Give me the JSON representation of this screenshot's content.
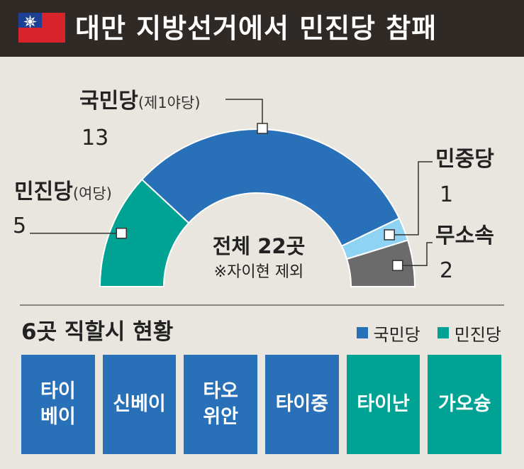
{
  "header": {
    "title": "대만 지방선거에서 민진당 참패"
  },
  "colors": {
    "kmt": "#2870b8",
    "dpp": "#00a294",
    "tpp": "#8fd3f4",
    "independent": "#6b6b6b",
    "header_bg": "#2f2a25",
    "background": "#e9e5df"
  },
  "chart_data": {
    "type": "pie",
    "shape": "semicircle-donut",
    "total_label": "전체 22곳",
    "note": "※자이현 제외",
    "series": [
      {
        "name": "민진당",
        "sub": "(여당)",
        "value": 5,
        "color": "#00a294"
      },
      {
        "name": "국민당",
        "sub": "(제1야당)",
        "value": 13,
        "color": "#2870b8"
      },
      {
        "name": "민중당",
        "sub": "",
        "value": 1,
        "color": "#8fd3f4"
      },
      {
        "name": "무소속",
        "sub": "",
        "value": 2,
        "color": "#6b6b6b"
      }
    ]
  },
  "labels": {
    "kmt": {
      "name": "국민당",
      "sub": "(제1야당)",
      "seats": "13"
    },
    "dpp": {
      "name": "민진당",
      "sub": "(여당)",
      "seats": "5"
    },
    "tpp": {
      "name": "민중당",
      "seats": "1"
    },
    "ind": {
      "name": "무소속",
      "seats": "2"
    }
  },
  "section": {
    "title": "6곳 직할시 현황",
    "legend": [
      {
        "label": "국민당",
        "color": "#2870b8"
      },
      {
        "label": "민진당",
        "color": "#00a294"
      }
    ],
    "cities": [
      {
        "name": "타이\n베이",
        "party": "kmt"
      },
      {
        "name": "신베이",
        "party": "kmt"
      },
      {
        "name": "타오\n위안",
        "party": "kmt"
      },
      {
        "name": "타이중",
        "party": "kmt"
      },
      {
        "name": "타이난",
        "party": "dpp"
      },
      {
        "name": "가오슝",
        "party": "dpp"
      }
    ]
  }
}
